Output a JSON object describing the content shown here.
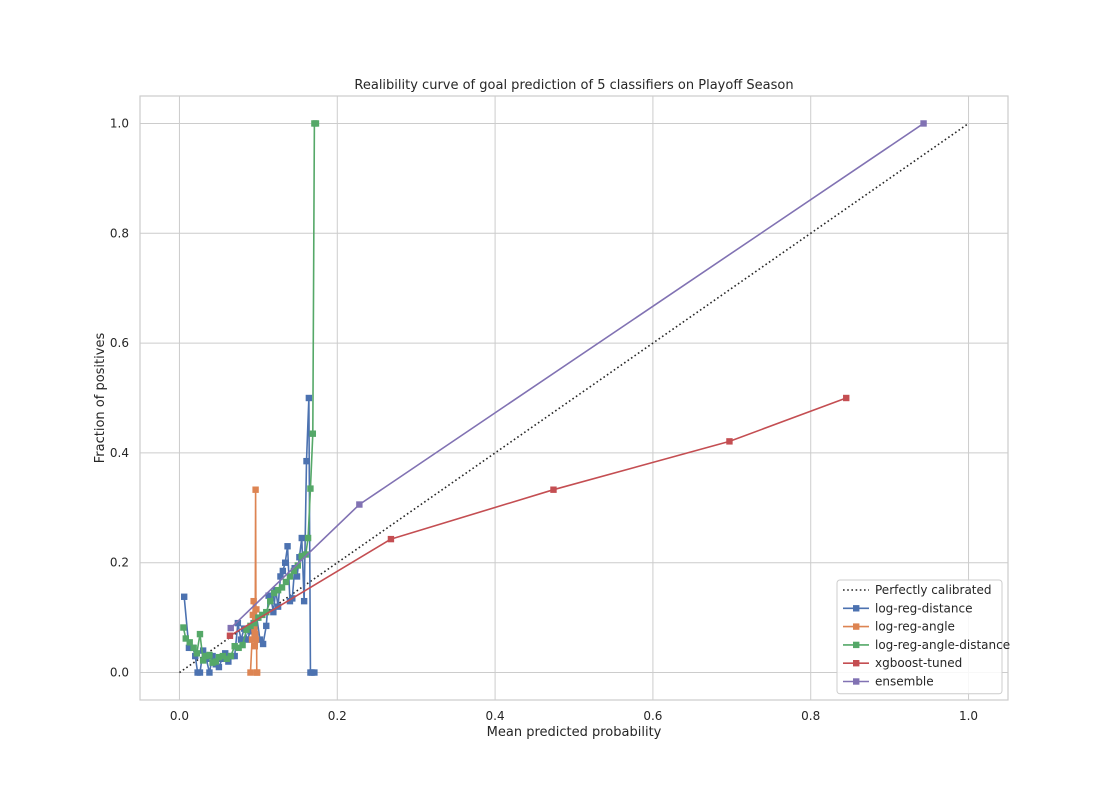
{
  "chart_data": {
    "type": "line",
    "title": "Realibility curve of goal prediction of 5 classifiers on Playoff Season",
    "xlabel": "Mean predicted probability",
    "ylabel": "Fraction of positives",
    "xlim": [
      -0.05,
      1.05
    ],
    "ylim": [
      -0.05,
      1.05
    ],
    "xticks": [
      0.0,
      0.2,
      0.4,
      0.6,
      0.8,
      1.0
    ],
    "xtick_labels": [
      "0.0",
      "0.2",
      "0.4",
      "0.6",
      "0.8",
      "1.0"
    ],
    "yticks": [
      0.0,
      0.2,
      0.4,
      0.6,
      0.8,
      1.0
    ],
    "ytick_labels": [
      "0.0",
      "0.2",
      "0.4",
      "0.6",
      "0.8",
      "1.0"
    ],
    "grid": true,
    "legend_position": "bottom-right",
    "reference": {
      "name": "Perfectly calibrated",
      "style": "dotted",
      "color": "#262626",
      "x": [
        0.0,
        1.0
      ],
      "y": [
        0.0,
        1.0
      ]
    },
    "series": [
      {
        "name": "log-reg-distance",
        "color": "#4c72b0",
        "marker": "square",
        "x": [
          0.006,
          0.012,
          0.017,
          0.02,
          0.023,
          0.026,
          0.03,
          0.034,
          0.038,
          0.042,
          0.046,
          0.05,
          0.054,
          0.058,
          0.062,
          0.066,
          0.07,
          0.074,
          0.078,
          0.082,
          0.086,
          0.09,
          0.094,
          0.098,
          0.102,
          0.106,
          0.11,
          0.113,
          0.116,
          0.119,
          0.122,
          0.125,
          0.128,
          0.131,
          0.134,
          0.137,
          0.14,
          0.143,
          0.146,
          0.149,
          0.152,
          0.155,
          0.158,
          0.161,
          0.164,
          0.166,
          0.168,
          0.171
        ],
        "y": [
          0.138,
          0.045,
          0.045,
          0.03,
          0.0,
          0.0,
          0.04,
          0.025,
          0.0,
          0.03,
          0.015,
          0.01,
          0.025,
          0.035,
          0.02,
          0.03,
          0.03,
          0.09,
          0.06,
          0.08,
          0.06,
          0.075,
          0.09,
          0.1,
          0.06,
          0.052,
          0.085,
          0.14,
          0.135,
          0.11,
          0.15,
          0.12,
          0.175,
          0.185,
          0.2,
          0.23,
          0.13,
          0.135,
          0.19,
          0.175,
          0.21,
          0.245,
          0.13,
          0.385,
          0.5,
          0.0,
          0.0,
          0.0
        ]
      },
      {
        "name": "log-reg-angle",
        "color": "#dd8452",
        "marker": "square",
        "x": [
          0.09,
          0.092,
          0.093,
          0.094,
          0.095,
          0.0955,
          0.096,
          0.0965,
          0.097,
          0.0975,
          0.098,
          0.0985
        ],
        "y": [
          0.0,
          0.06,
          0.105,
          0.13,
          0.08,
          0.048,
          0.07,
          0.333,
          0.06,
          0.115,
          0.0,
          0.0
        ]
      },
      {
        "name": "log-reg-angle-distance",
        "color": "#55a868",
        "marker": "square",
        "x": [
          0.005,
          0.008,
          0.013,
          0.018,
          0.022,
          0.026,
          0.03,
          0.034,
          0.038,
          0.042,
          0.046,
          0.05,
          0.055,
          0.06,
          0.065,
          0.07,
          0.075,
          0.08,
          0.085,
          0.09,
          0.095,
          0.1,
          0.105,
          0.11,
          0.115,
          0.12,
          0.125,
          0.13,
          0.135,
          0.14,
          0.145,
          0.15,
          0.155,
          0.16,
          0.163,
          0.166,
          0.169,
          0.171,
          0.173
        ],
        "y": [
          0.082,
          0.062,
          0.055,
          0.045,
          0.035,
          0.07,
          0.022,
          0.03,
          0.032,
          0.018,
          0.02,
          0.028,
          0.03,
          0.025,
          0.03,
          0.048,
          0.045,
          0.05,
          0.078,
          0.085,
          0.09,
          0.1,
          0.105,
          0.11,
          0.13,
          0.145,
          0.15,
          0.155,
          0.165,
          0.175,
          0.185,
          0.195,
          0.212,
          0.215,
          0.245,
          0.335,
          0.435,
          1.0,
          1.0
        ]
      },
      {
        "name": "xgboost-tuned",
        "color": "#c44e52",
        "marker": "square",
        "x": [
          0.064,
          0.268,
          0.474,
          0.697,
          0.845
        ],
        "y": [
          0.067,
          0.243,
          0.333,
          0.421,
          0.5
        ]
      },
      {
        "name": "ensemble",
        "color": "#8172b3",
        "marker": "square",
        "x": [
          0.065,
          0.228,
          0.943
        ],
        "y": [
          0.081,
          0.306,
          1.0
        ]
      }
    ]
  }
}
